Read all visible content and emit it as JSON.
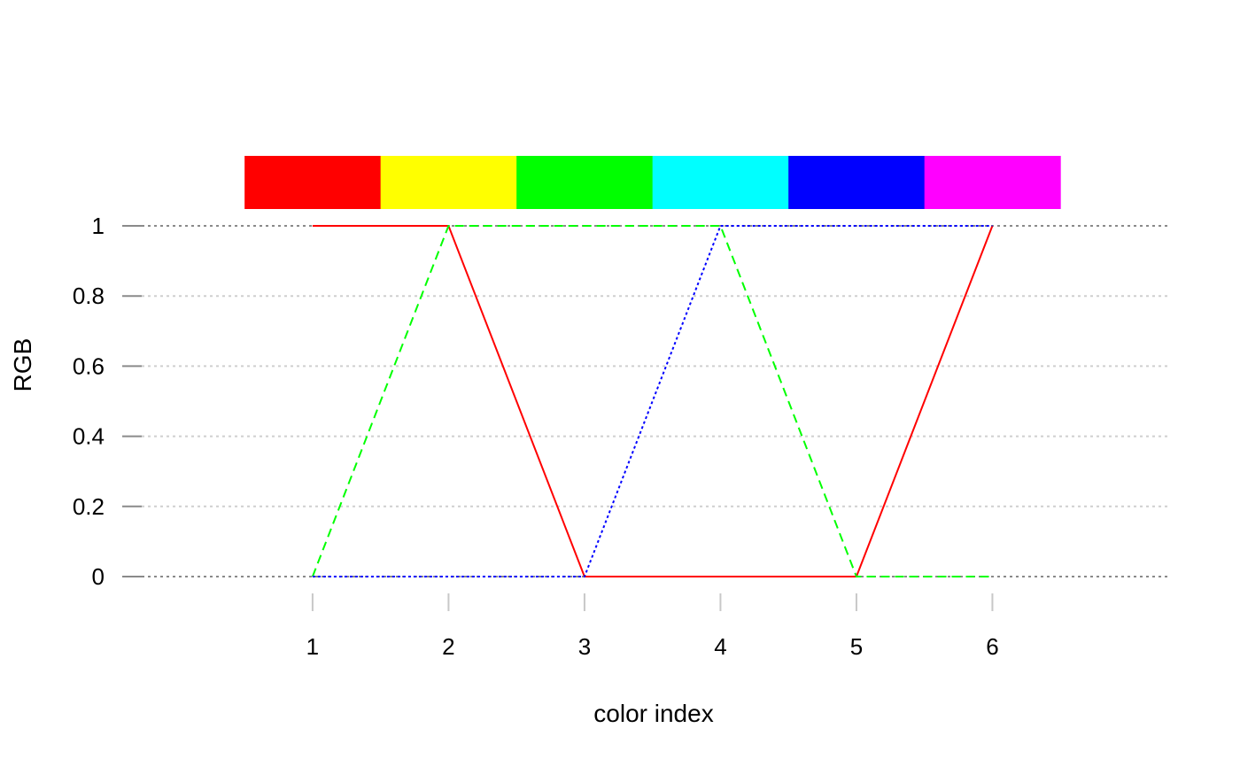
{
  "chart_data": {
    "type": "line",
    "xlabel": "color index",
    "ylabel": "RGB",
    "x": [
      1,
      2,
      3,
      4,
      5,
      6
    ],
    "xlim": [
      -0.4,
      7.3
    ],
    "ylim": [
      -0.25,
      1.0
    ],
    "x_ticks": [
      1,
      2,
      3,
      4,
      5,
      6
    ],
    "x_tick_labels": [
      "1",
      "2",
      "3",
      "4",
      "5",
      "6"
    ],
    "y_ticks": [
      0,
      0.2,
      0.4,
      0.6,
      0.8,
      1
    ],
    "y_tick_labels": [
      "0",
      "0.2",
      "0.4",
      "0.6",
      "0.8",
      "1"
    ],
    "grid": true,
    "swatches": [
      "#FF0000",
      "#FFFF00",
      "#00FF00",
      "#00FFFF",
      "#0000FF",
      "#FF00FF"
    ],
    "series": [
      {
        "values": [
          1,
          1,
          0,
          0,
          0,
          1
        ],
        "color": "#FF0000",
        "dash": "solid"
      },
      {
        "values": [
          0,
          1,
          1,
          1,
          0,
          0
        ],
        "color": "#00FF00",
        "dash": "dashed"
      },
      {
        "values": [
          0,
          0,
          0,
          1,
          1,
          1
        ],
        "color": "#0000FF",
        "dash": "dotted"
      }
    ]
  }
}
